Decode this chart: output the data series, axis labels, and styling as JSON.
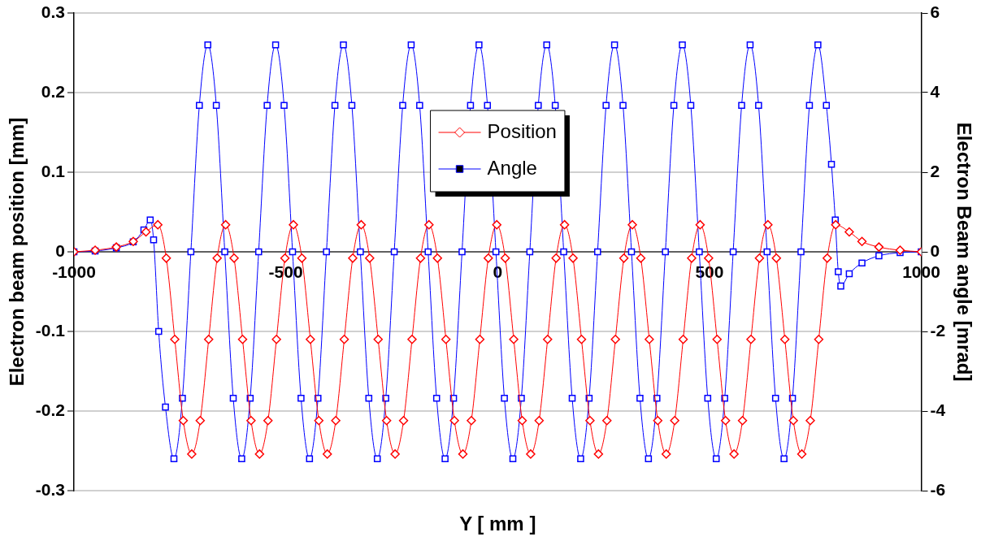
{
  "chart_data": {
    "type": "line",
    "xlabel": "Y [ mm ]",
    "ylabel": "Electron beam position [mm]",
    "y2label": "Electron Beam angle [mrad]",
    "xlim": [
      -1000,
      1000
    ],
    "xticks": [
      -1000,
      -500,
      0,
      500,
      1000
    ],
    "ylim": [
      -0.3,
      0.3
    ],
    "yticks": [
      -0.3,
      -0.2,
      -0.1,
      0.0,
      0.1,
      0.2,
      0.3
    ],
    "y2lim": [
      -6,
      6
    ],
    "y2ticks": [
      -6,
      -4,
      -2,
      0,
      2,
      4,
      6
    ],
    "grid": "y",
    "legend": "top",
    "line_style": "solid",
    "series": [
      {
        "name": "Position",
        "color": "#ff0000",
        "marker": "diamond",
        "x": [
          -1000,
          -950,
          -900,
          -860,
          -830,
          -802,
          -782,
          -762,
          -742,
          -722,
          -702,
          -682,
          -662,
          -642,
          -622,
          -602,
          -582,
          -562,
          -542,
          -522,
          -502,
          -482,
          -462,
          -442,
          -422,
          -402,
          -382,
          -362,
          -342,
          -322,
          -302,
          -282,
          -262,
          -242,
          -222,
          -202,
          -182,
          -162,
          -142,
          -122,
          -102,
          -82,
          -62,
          -42,
          -22,
          -2,
          18,
          38,
          58,
          78,
          98,
          118,
          138,
          158,
          178,
          198,
          218,
          238,
          258,
          278,
          298,
          318,
          338,
          358,
          378,
          398,
          418,
          438,
          458,
          478,
          498,
          518,
          538,
          558,
          578,
          598,
          618,
          638,
          658,
          678,
          698,
          718,
          738,
          758,
          778,
          798,
          830,
          860,
          900,
          950,
          1000
        ],
        "values": [
          0,
          0.002,
          0.006,
          0.013,
          0.025,
          0.034,
          -0.008,
          -0.11,
          -0.212,
          -0.254,
          -0.212,
          -0.11,
          -0.008,
          0.034,
          -0.008,
          -0.11,
          -0.212,
          -0.254,
          -0.212,
          -0.11,
          -0.008,
          0.034,
          -0.008,
          -0.11,
          -0.212,
          -0.254,
          -0.212,
          -0.11,
          -0.008,
          0.034,
          -0.008,
          -0.11,
          -0.212,
          -0.254,
          -0.212,
          -0.11,
          -0.008,
          0.034,
          -0.008,
          -0.11,
          -0.212,
          -0.254,
          -0.212,
          -0.11,
          -0.008,
          0.034,
          -0.008,
          -0.11,
          -0.212,
          -0.254,
          -0.212,
          -0.11,
          -0.008,
          0.034,
          -0.008,
          -0.11,
          -0.212,
          -0.254,
          -0.212,
          -0.11,
          -0.008,
          0.034,
          -0.008,
          -0.11,
          -0.212,
          -0.254,
          -0.212,
          -0.11,
          -0.008,
          0.034,
          -0.008,
          -0.11,
          -0.212,
          -0.254,
          -0.212,
          -0.11,
          -0.008,
          0.034,
          -0.008,
          -0.11,
          -0.212,
          -0.254,
          -0.212,
          -0.11,
          -0.008,
          0.034,
          0.025,
          0.013,
          0.006,
          0.002,
          0
        ]
      },
      {
        "name": "Angle",
        "color": "#0000ff",
        "marker": "square",
        "axis": "y2",
        "x": [
          -1000,
          -950,
          -900,
          -860,
          -835,
          -820,
          -812,
          -800,
          -784,
          -764,
          -744,
          -724,
          -704,
          -684,
          -664,
          -644,
          -624,
          -604,
          -584,
          -564,
          -544,
          -524,
          -504,
          -484,
          -464,
          -444,
          -424,
          -404,
          -384,
          -364,
          -344,
          -324,
          -304,
          -284,
          -264,
          -244,
          -224,
          -204,
          -184,
          -164,
          -144,
          -124,
          -104,
          -84,
          -64,
          -44,
          -24,
          -4,
          16,
          36,
          56,
          76,
          96,
          116,
          136,
          156,
          176,
          196,
          216,
          236,
          256,
          276,
          296,
          316,
          336,
          356,
          376,
          396,
          416,
          436,
          456,
          476,
          496,
          516,
          536,
          556,
          576,
          596,
          616,
          636,
          656,
          676,
          696,
          716,
          736,
          756,
          776,
          788,
          797,
          804,
          810,
          830,
          860,
          900,
          950,
          1000
        ],
        "values": [
          0,
          0.02,
          0.1,
          0.25,
          0.55,
          0.8,
          0.3,
          -2.0,
          -3.9,
          -5.2,
          -3.68,
          0,
          3.68,
          5.2,
          3.68,
          0,
          -3.68,
          -5.2,
          -3.68,
          0,
          3.68,
          5.2,
          3.68,
          0,
          -3.68,
          -5.2,
          -3.68,
          0,
          3.68,
          5.2,
          3.68,
          0,
          -3.68,
          -5.2,
          -3.68,
          0,
          3.68,
          5.2,
          3.68,
          0,
          -3.68,
          -5.2,
          -3.68,
          0,
          3.68,
          5.2,
          3.68,
          0,
          -3.68,
          -5.2,
          -3.68,
          0,
          3.68,
          5.2,
          3.68,
          0,
          -3.68,
          -5.2,
          -3.68,
          0,
          3.68,
          5.2,
          3.68,
          0,
          -3.68,
          -5.2,
          -3.68,
          0,
          3.68,
          5.2,
          3.68,
          0,
          -3.68,
          -5.2,
          -3.68,
          0,
          3.68,
          5.2,
          3.68,
          0,
          -3.68,
          -5.2,
          -3.68,
          0,
          3.68,
          5.2,
          3.68,
          2.2,
          0.8,
          -0.5,
          -0.86,
          -0.55,
          -0.28,
          -0.1,
          -0.02,
          0
        ]
      }
    ]
  }
}
